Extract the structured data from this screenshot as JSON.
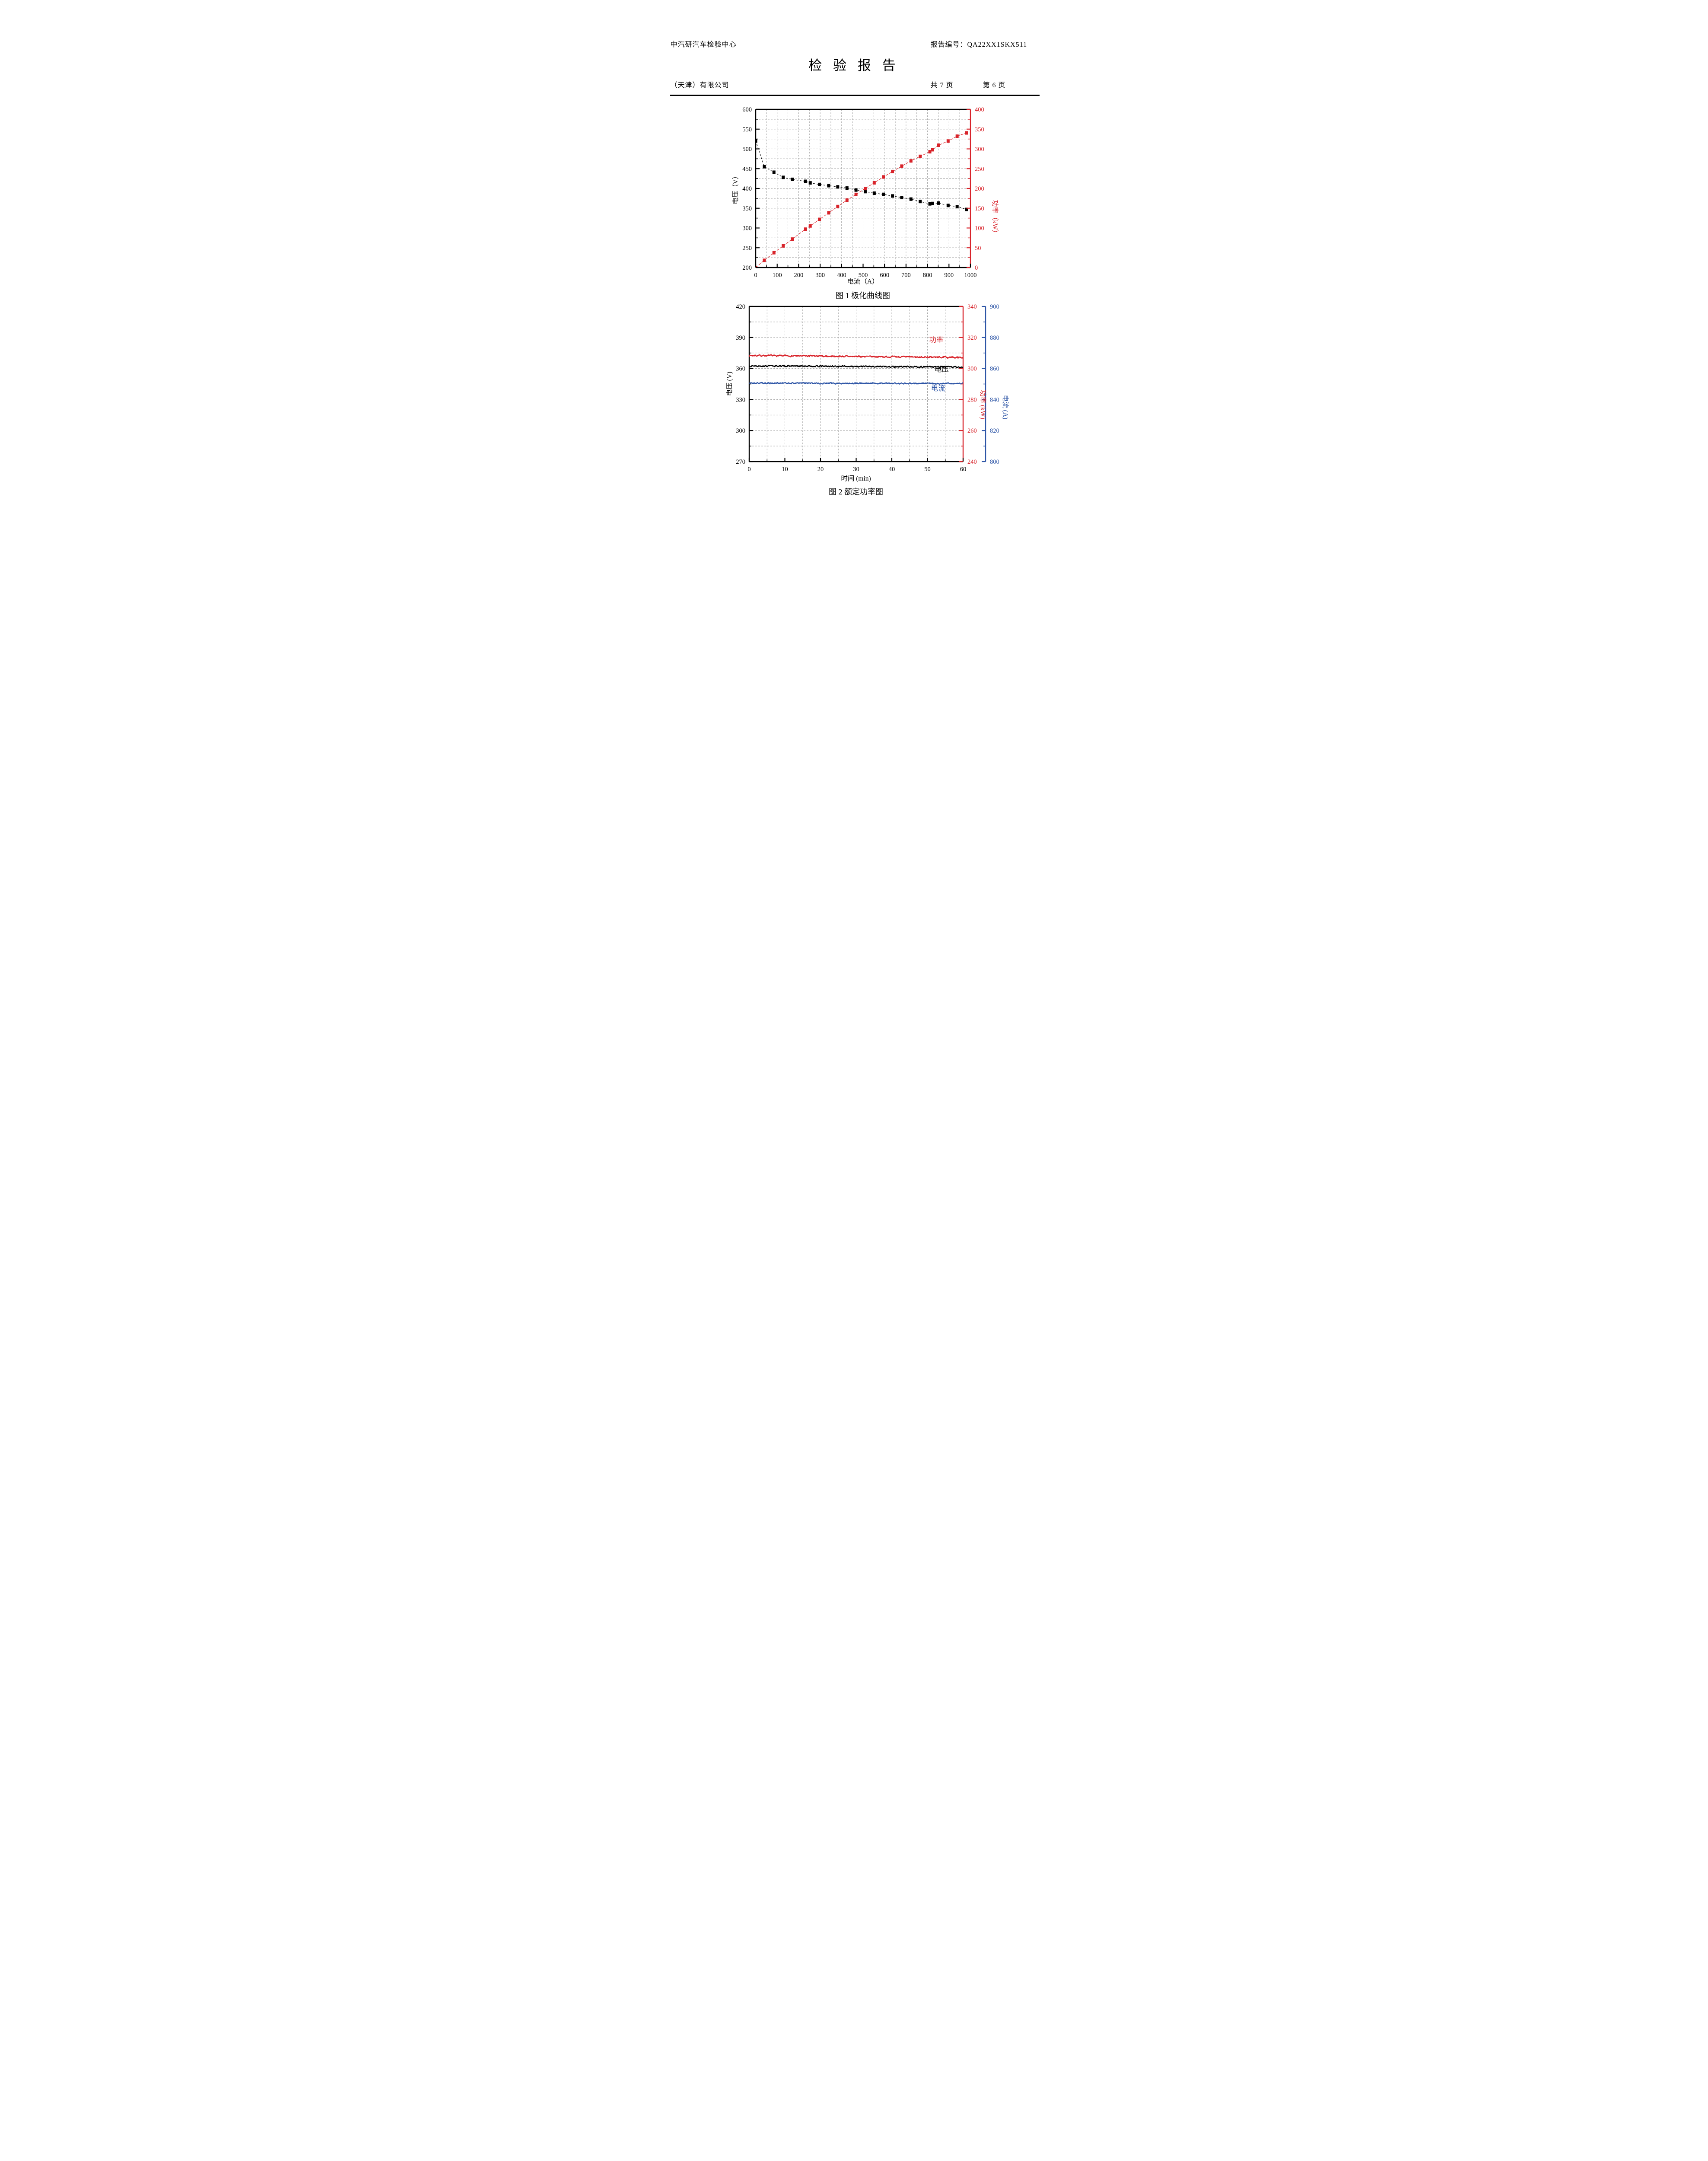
{
  "header": {
    "org_name": "中汽研汽车检验中心",
    "company": "（天津）有限公司",
    "report_no": "报告编号：QA22XX1SKX511",
    "title": "检 验 报 告",
    "pages_total": "共 7 页",
    "page_current": "第 6 页"
  },
  "colors": {
    "red_accent": "#d8232a",
    "blue_accent": "#2d55a6",
    "grid_gray": "#999999",
    "black": "#000000"
  },
  "chart_data": [
    {
      "id": "fig1",
      "type": "scatter",
      "caption": "图 1 极化曲线图",
      "xlabel": "电流（A）",
      "ylabel_left": "电压（V）",
      "ylabel_right": "功率（kW）",
      "x_axis": {
        "min": 0,
        "max": 1000,
        "tick": 100,
        "minor": 50,
        "grid": 50
      },
      "y_left": {
        "min": 200,
        "max": 600,
        "tick": 50,
        "minor": 25,
        "grid": 25,
        "color": "#000000"
      },
      "y_right": {
        "min": 0,
        "max": 400,
        "tick": 50,
        "minor": 25,
        "color": "#d8232a"
      },
      "grid": true,
      "legend_position": "none",
      "series": [
        {
          "name": "电压",
          "axis": "left",
          "color": "#000000",
          "marker": "square",
          "dash": "4 4",
          "x": [
            0,
            40,
            85,
            128,
            170,
            232,
            254,
            297,
            340,
            382,
            425,
            467,
            510,
            552,
            595,
            637,
            680,
            723,
            766,
            811,
            823,
            852,
            896,
            938,
            981
          ],
          "y": [
            520,
            455,
            441,
            428,
            423,
            418,
            414,
            410,
            407,
            404,
            401,
            396,
            392,
            388,
            385,
            381,
            377,
            373,
            367,
            361,
            362,
            363,
            357,
            354,
            347
          ]
        },
        {
          "name": "功率",
          "axis": "right",
          "color": "#d8232a",
          "marker": "square",
          "dash": "6 3",
          "x": [
            0,
            40,
            85,
            128,
            170,
            232,
            254,
            297,
            340,
            382,
            425,
            467,
            510,
            552,
            595,
            637,
            680,
            723,
            766,
            811,
            823,
            852,
            896,
            938,
            981
          ],
          "y": [
            0,
            18.2,
            37.5,
            54.8,
            71.9,
            97.0,
            105.2,
            121.8,
            138.4,
            154.3,
            170.4,
            184.9,
            199.9,
            214.2,
            229.1,
            242.7,
            256.4,
            269.7,
            281.1,
            292.8,
            297.9,
            309.3,
            319.9,
            332.1,
            340.4
          ]
        }
      ]
    },
    {
      "id": "fig2",
      "type": "noisy-lines",
      "caption": "图 2 额定功率图",
      "xlabel": "时间 (min)",
      "ylabel_left": "电压 (V)",
      "ylabel_right_power": "功率 (kW)",
      "ylabel_right_current": "电流 (A)",
      "x_axis": {
        "min": 0,
        "max": 60,
        "tick": 10,
        "minor": 5,
        "grid": 5
      },
      "y_left": {
        "min": 270,
        "max": 420,
        "tick": 30,
        "minor": 15,
        "grid": 15,
        "color": "#000000"
      },
      "y_right_power": {
        "min": 240,
        "max": 340,
        "tick": 20,
        "minor": 10,
        "color": "#d8232a"
      },
      "y_right_current": {
        "min": 800,
        "max": 900,
        "tick": 20,
        "minor": 10,
        "color": "#2d55a6"
      },
      "grid": true,
      "series": [
        {
          "name": "功率",
          "axis": "power",
          "color": "#d8232a",
          "start": 308.4,
          "end": 307.1,
          "noise": 0.42,
          "seed": 7
        },
        {
          "name": "电压",
          "axis": "left",
          "color": "#000000",
          "start": 362.6,
          "end": 361.4,
          "noise": 0.6,
          "seed": 13
        },
        {
          "name": "电流",
          "axis": "current",
          "color": "#2d55a6",
          "start": 850.6,
          "end": 850.3,
          "noise": 0.38,
          "seed": 21
        }
      ],
      "inline_labels": [
        {
          "text": "功率",
          "color": "#d8232a",
          "x": 52.5,
          "y_left": 385.5
        },
        {
          "text": "电压",
          "color": "#000000",
          "x": 54.0,
          "y_left": 357.0
        },
        {
          "text": "电流",
          "color": "#2d55a6",
          "x": 53.0,
          "y_left": 338.5
        }
      ]
    }
  ]
}
